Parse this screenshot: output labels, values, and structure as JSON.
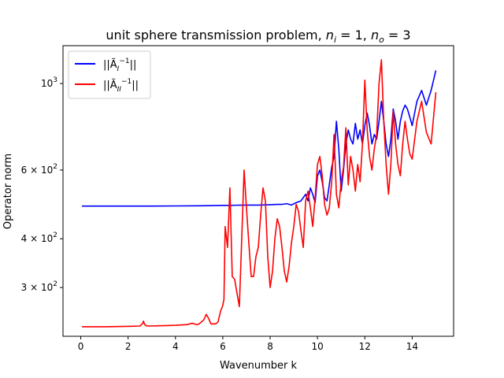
{
  "chart_data": {
    "type": "line",
    "title": "unit sphere transmission problem, n_i = 1, n_o = 3",
    "title_parts": {
      "prefix": "unit sphere transmission problem, ",
      "n_i_base": "n",
      "n_i_sub": "i",
      "n_i_val": " = 1, ",
      "n_o_base": "n",
      "n_o_sub": "o",
      "n_o_val": " = 3"
    },
    "xlabel": "Wavenumber k",
    "ylabel": "Operator norm",
    "xlim": [
      -0.75,
      15.75
    ],
    "ylim": [
      225,
      1250
    ],
    "yscale": "log",
    "xticks": [
      0,
      2,
      4,
      6,
      8,
      10,
      12,
      14
    ],
    "xtick_labels": [
      "0",
      "2",
      "4",
      "6",
      "8",
      "10",
      "12",
      "14"
    ],
    "yticks": [
      {
        "value": 300,
        "base": "3 × 10",
        "exp": "2"
      },
      {
        "value": 400,
        "base": "4 × 10",
        "exp": "2"
      },
      {
        "value": 600,
        "base": "6 × 10",
        "exp": "2"
      },
      {
        "value": 1000,
        "base": "10",
        "exp": "3"
      }
    ],
    "legend_position": "top-left",
    "series": [
      {
        "name": "||Ã_I⁻¹||",
        "legend_base": "||Ã",
        "legend_sub": "I",
        "legend_sup": "−1",
        "legend_tail": "||",
        "color": "#0000ff",
        "points": [
          [
            0.05,
            485
          ],
          [
            1.0,
            485
          ],
          [
            2.0,
            485
          ],
          [
            3.0,
            485
          ],
          [
            4.0,
            485.5
          ],
          [
            5.0,
            486
          ],
          [
            5.5,
            486.5
          ],
          [
            6.0,
            487
          ],
          [
            6.3,
            487
          ],
          [
            6.5,
            487.5
          ],
          [
            7.0,
            488
          ],
          [
            7.5,
            488
          ],
          [
            8.0,
            489
          ],
          [
            8.3,
            490
          ],
          [
            8.5,
            490
          ],
          [
            8.7,
            492
          ],
          [
            8.9,
            488
          ],
          [
            9.1,
            495
          ],
          [
            9.3,
            500
          ],
          [
            9.5,
            520
          ],
          [
            9.6,
            500
          ],
          [
            9.7,
            540
          ],
          [
            9.8,
            520
          ],
          [
            9.9,
            495
          ],
          [
            10.0,
            580
          ],
          [
            10.1,
            600
          ],
          [
            10.2,
            560
          ],
          [
            10.3,
            510
          ],
          [
            10.4,
            500
          ],
          [
            10.5,
            550
          ],
          [
            10.6,
            610
          ],
          [
            10.7,
            650
          ],
          [
            10.8,
            800
          ],
          [
            10.9,
            680
          ],
          [
            11.0,
            530
          ],
          [
            11.1,
            600
          ],
          [
            11.2,
            700
          ],
          [
            11.3,
            760
          ],
          [
            11.4,
            720
          ],
          [
            11.5,
            700
          ],
          [
            11.6,
            790
          ],
          [
            11.7,
            720
          ],
          [
            11.8,
            760
          ],
          [
            11.9,
            700
          ],
          [
            12.0,
            780
          ],
          [
            12.1,
            840
          ],
          [
            12.2,
            780
          ],
          [
            12.3,
            700
          ],
          [
            12.4,
            740
          ],
          [
            12.5,
            720
          ],
          [
            12.6,
            800
          ],
          [
            12.7,
            900
          ],
          [
            12.8,
            800
          ],
          [
            12.9,
            700
          ],
          [
            13.0,
            650
          ],
          [
            13.1,
            720
          ],
          [
            13.2,
            860
          ],
          [
            13.3,
            800
          ],
          [
            13.4,
            720
          ],
          [
            13.5,
            800
          ],
          [
            13.6,
            850
          ],
          [
            13.7,
            880
          ],
          [
            13.8,
            860
          ],
          [
            13.9,
            820
          ],
          [
            14.0,
            780
          ],
          [
            14.2,
            900
          ],
          [
            14.4,
            960
          ],
          [
            14.6,
            880
          ],
          [
            14.8,
            960
          ],
          [
            15.0,
            1080
          ]
        ]
      },
      {
        "name": "||Ã_II⁻¹||",
        "legend_base": "||Ã",
        "legend_sub": "II",
        "legend_sup": "−1",
        "legend_tail": "||",
        "color": "#ff0000",
        "points": [
          [
            0.05,
            238
          ],
          [
            1.0,
            238
          ],
          [
            2.0,
            238.5
          ],
          [
            2.5,
            239
          ],
          [
            2.6,
            242
          ],
          [
            2.65,
            246
          ],
          [
            2.7,
            241
          ],
          [
            2.8,
            239
          ],
          [
            3.5,
            239.5
          ],
          [
            4.0,
            240
          ],
          [
            4.5,
            241
          ],
          [
            4.7,
            243
          ],
          [
            4.9,
            241
          ],
          [
            5.0,
            242
          ],
          [
            5.2,
            248
          ],
          [
            5.3,
            256
          ],
          [
            5.4,
            250
          ],
          [
            5.5,
            242
          ],
          [
            5.7,
            242
          ],
          [
            5.8,
            245
          ],
          [
            5.9,
            260
          ],
          [
            6.0,
            270
          ],
          [
            6.05,
            280
          ],
          [
            6.1,
            430
          ],
          [
            6.2,
            380
          ],
          [
            6.3,
            540
          ],
          [
            6.4,
            320
          ],
          [
            6.5,
            315
          ],
          [
            6.6,
            290
          ],
          [
            6.7,
            268
          ],
          [
            6.8,
            400
          ],
          [
            6.9,
            600
          ],
          [
            7.0,
            480
          ],
          [
            7.1,
            390
          ],
          [
            7.2,
            320
          ],
          [
            7.3,
            320
          ],
          [
            7.4,
            360
          ],
          [
            7.5,
            380
          ],
          [
            7.6,
            460
          ],
          [
            7.7,
            540
          ],
          [
            7.8,
            500
          ],
          [
            7.9,
            360
          ],
          [
            8.0,
            300
          ],
          [
            8.1,
            330
          ],
          [
            8.2,
            400
          ],
          [
            8.3,
            450
          ],
          [
            8.4,
            430
          ],
          [
            8.5,
            380
          ],
          [
            8.6,
            330
          ],
          [
            8.7,
            310
          ],
          [
            8.8,
            340
          ],
          [
            8.9,
            390
          ],
          [
            9.0,
            430
          ],
          [
            9.1,
            490
          ],
          [
            9.2,
            470
          ],
          [
            9.3,
            420
          ],
          [
            9.4,
            380
          ],
          [
            9.5,
            500
          ],
          [
            9.6,
            530
          ],
          [
            9.7,
            480
          ],
          [
            9.8,
            430
          ],
          [
            9.9,
            510
          ],
          [
            10.0,
            620
          ],
          [
            10.1,
            650
          ],
          [
            10.2,
            580
          ],
          [
            10.3,
            490
          ],
          [
            10.4,
            460
          ],
          [
            10.5,
            480
          ],
          [
            10.6,
            560
          ],
          [
            10.7,
            740
          ],
          [
            10.8,
            520
          ],
          [
            10.9,
            480
          ],
          [
            11.0,
            560
          ],
          [
            11.1,
            610
          ],
          [
            11.2,
            770
          ],
          [
            11.3,
            550
          ],
          [
            11.4,
            650
          ],
          [
            11.5,
            600
          ],
          [
            11.6,
            530
          ],
          [
            11.7,
            620
          ],
          [
            11.8,
            560
          ],
          [
            11.9,
            700
          ],
          [
            12.0,
            1020
          ],
          [
            12.1,
            760
          ],
          [
            12.2,
            650
          ],
          [
            12.3,
            600
          ],
          [
            12.4,
            680
          ],
          [
            12.5,
            740
          ],
          [
            12.6,
            1000
          ],
          [
            12.7,
            1150
          ],
          [
            12.8,
            800
          ],
          [
            12.9,
            620
          ],
          [
            13.0,
            520
          ],
          [
            13.1,
            620
          ],
          [
            13.2,
            850
          ],
          [
            13.3,
            700
          ],
          [
            13.4,
            620
          ],
          [
            13.5,
            580
          ],
          [
            13.6,
            700
          ],
          [
            13.7,
            800
          ],
          [
            13.8,
            720
          ],
          [
            13.9,
            660
          ],
          [
            14.0,
            640
          ],
          [
            14.2,
            800
          ],
          [
            14.4,
            900
          ],
          [
            14.6,
            750
          ],
          [
            14.8,
            700
          ],
          [
            15.0,
            950
          ]
        ]
      }
    ]
  }
}
